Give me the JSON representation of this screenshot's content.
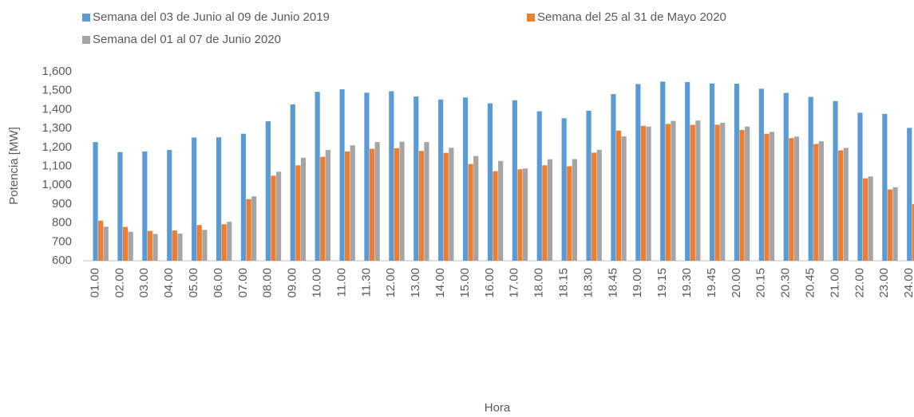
{
  "chart_data": {
    "type": "bar",
    "xlabel": "Hora",
    "ylabel": "Potencia [MW]",
    "categories": [
      "01.00",
      "02.00",
      "03.00",
      "04.00",
      "05.00",
      "06.00",
      "07.00",
      "08.00",
      "09.00",
      "10.00",
      "11.00",
      "11.30",
      "12.00",
      "13.00",
      "14.00",
      "15.00",
      "16.00",
      "17.00",
      "18.00",
      "18.15",
      "18.30",
      "18.45",
      "19.00",
      "19.15",
      "19.30",
      "19.45",
      "20.00",
      "20.15",
      "20.30",
      "20.45",
      "21.00",
      "22.00",
      "23.00",
      "24.00"
    ],
    "series": [
      {
        "name": "Semana del 03 de Junio al 09 de Junio 2019",
        "color": "#5b9bd5",
        "values": [
          1228,
          1175,
          1178,
          1186,
          1252,
          1253,
          1272,
          1338,
          1427,
          1494,
          1507,
          1489,
          1497,
          1469,
          1453,
          1464,
          1433,
          1449,
          1391,
          1354,
          1394,
          1482,
          1535,
          1548,
          1546,
          1538,
          1537,
          1510,
          1488,
          1467,
          1445,
          1383,
          1377,
          1303
        ]
      },
      {
        "name": "Semana del 25 al 31 de Mayo 2020",
        "color": "#ed7d31",
        "values": [
          812,
          779,
          758,
          760,
          789,
          793,
          926,
          1050,
          1105,
          1150,
          1178,
          1192,
          1195,
          1181,
          1171,
          1112,
          1074,
          1084,
          1105,
          1100,
          1172,
          1289,
          1314,
          1324,
          1319,
          1320,
          1292,
          1272,
          1249,
          1218,
          1184,
          1036,
          977,
          900
        ]
      },
      {
        "name": "Semana del 01 al 07 de Junio 2020",
        "color": "#a5a5a5",
        "values": [
          780,
          753,
          742,
          744,
          763,
          806,
          941,
          1071,
          1145,
          1186,
          1211,
          1228,
          1230,
          1228,
          1198,
          1154,
          1128,
          1088,
          1137,
          1138,
          1187,
          1258,
          1310,
          1340,
          1342,
          1330,
          1310,
          1282,
          1257,
          1232,
          1197,
          1046,
          989,
          null
        ]
      }
    ],
    "ylim": [
      600,
      1600
    ],
    "yticks": [
      600,
      700,
      800,
      900,
      {
        "value": 1000,
        "label": "1,000"
      },
      {
        "value": 1100,
        "label": "1,100"
      },
      {
        "value": 1200,
        "label": "1,200"
      },
      {
        "value": 1300,
        "label": "1,300"
      },
      {
        "value": 1400,
        "label": "1,400"
      },
      {
        "value": 1500,
        "label": "1,500"
      },
      {
        "value": 1600,
        "label": "1,600"
      }
    ],
    "grid": false,
    "legend": "top"
  }
}
